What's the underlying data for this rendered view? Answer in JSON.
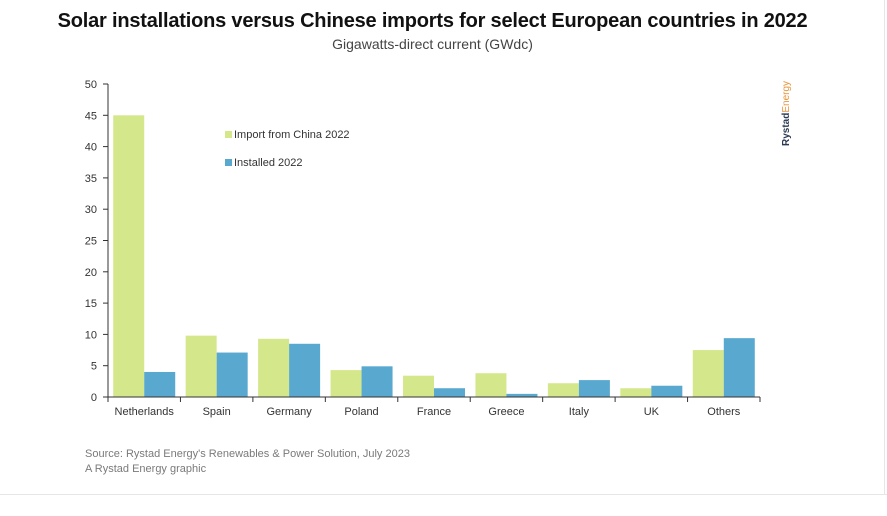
{
  "chart_data": {
    "type": "bar",
    "title": "Solar installations versus Chinese imports for select European countries in 2022",
    "subtitle": "Gigawatts-direct current (GWdc)",
    "categories": [
      "Netherlands",
      "Spain",
      "Germany",
      "Poland",
      "France",
      "Greece",
      "Italy",
      "UK",
      "Others"
    ],
    "series": [
      {
        "name": "Import from China 2022",
        "color": "#d4e88b",
        "values": [
          45,
          9.8,
          9.3,
          4.3,
          3.4,
          3.8,
          2.2,
          1.4,
          7.5
        ]
      },
      {
        "name": "Installed 2022",
        "color": "#58a8d0",
        "values": [
          4.0,
          7.1,
          8.5,
          4.9,
          1.4,
          0.5,
          2.7,
          1.8,
          9.4
        ]
      }
    ],
    "yticks": [
      0,
      5,
      10,
      15,
      20,
      25,
      30,
      35,
      40,
      45,
      50
    ],
    "ylim": [
      0,
      50
    ],
    "grid": false,
    "legend_position": "top-left"
  },
  "source": {
    "line1": "Source: Rystad Energy's Renewables & Power Solution, July 2023",
    "line2": "A Rystad Energy graphic"
  },
  "brand": {
    "part1": "Rystad",
    "part2": "Energy"
  }
}
